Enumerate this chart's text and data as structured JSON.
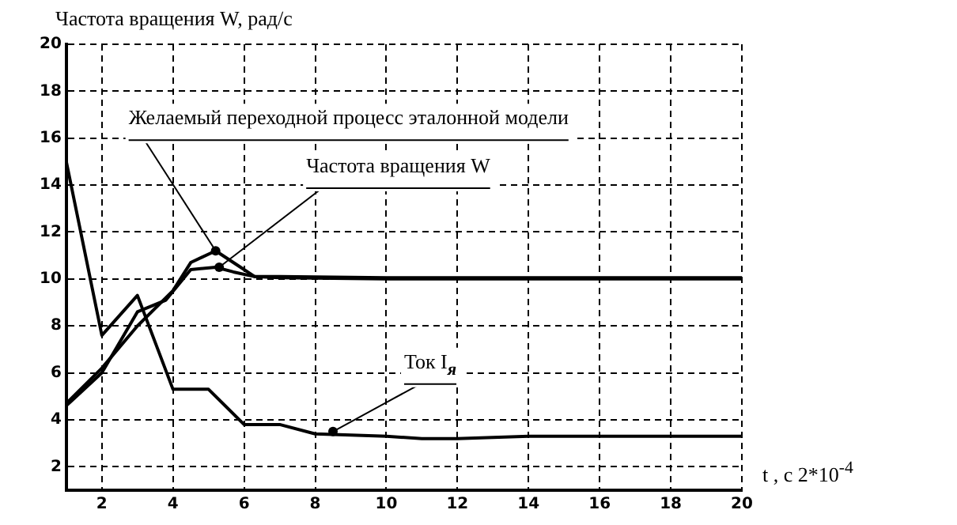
{
  "chart_data": {
    "type": "line",
    "ylabel": "Частота вращения W, рад/с",
    "xlabel": "t , с  2*10$^{-4}$",
    "xlim": [
      1,
      20
    ],
    "xticks": [
      2,
      4,
      6,
      8,
      10,
      12,
      14,
      16,
      18,
      20
    ],
    "ylim": [
      1,
      20
    ],
    "yticks": [
      2,
      4,
      6,
      8,
      10,
      12,
      14,
      16,
      18,
      20
    ],
    "grid": true,
    "legend": false,
    "marker": "none",
    "line_style": "solid",
    "series": [
      {
        "color": "#000000",
        "x": [
          1,
          2,
          3,
          4,
          4.5,
          5.2,
          5.8,
          6.3,
          7,
          10,
          14,
          20
        ],
        "values": [
          4.7,
          6.2,
          8.0,
          9.5,
          10.7,
          11.2,
          10.6,
          10.1,
          10.05,
          10.0,
          10.0,
          10.0
        ]
      },
      {
        "color": "#000000",
        "x": [
          1,
          2,
          3,
          3.8,
          4.5,
          5.2,
          5.7,
          6.3,
          7,
          10,
          14,
          20
        ],
        "values": [
          4.6,
          6.0,
          8.6,
          9.1,
          10.4,
          10.5,
          10.3,
          10.1,
          10.1,
          10.05,
          10.05,
          10.05
        ]
      },
      {
        "color": "#000000",
        "x": [
          1,
          2,
          3,
          4,
          5,
          6,
          7,
          8,
          10,
          11,
          12,
          14,
          20
        ],
        "values": [
          15,
          7.6,
          9.3,
          5.3,
          5.3,
          3.8,
          3.8,
          3.4,
          3.3,
          3.2,
          3.2,
          3.3,
          3.3
        ]
      }
    ],
    "annotations": [
      {
        "text": "Желаемый переходной процесс эталонной модели",
        "x": 5.2,
        "y": 11.2
      },
      {
        "text": "Частота вращения W",
        "x": 5.3,
        "y": 10.5
      },
      {
        "text": "Ток I$_{я}$",
        "x": 8.5,
        "y": 3.5
      }
    ]
  }
}
